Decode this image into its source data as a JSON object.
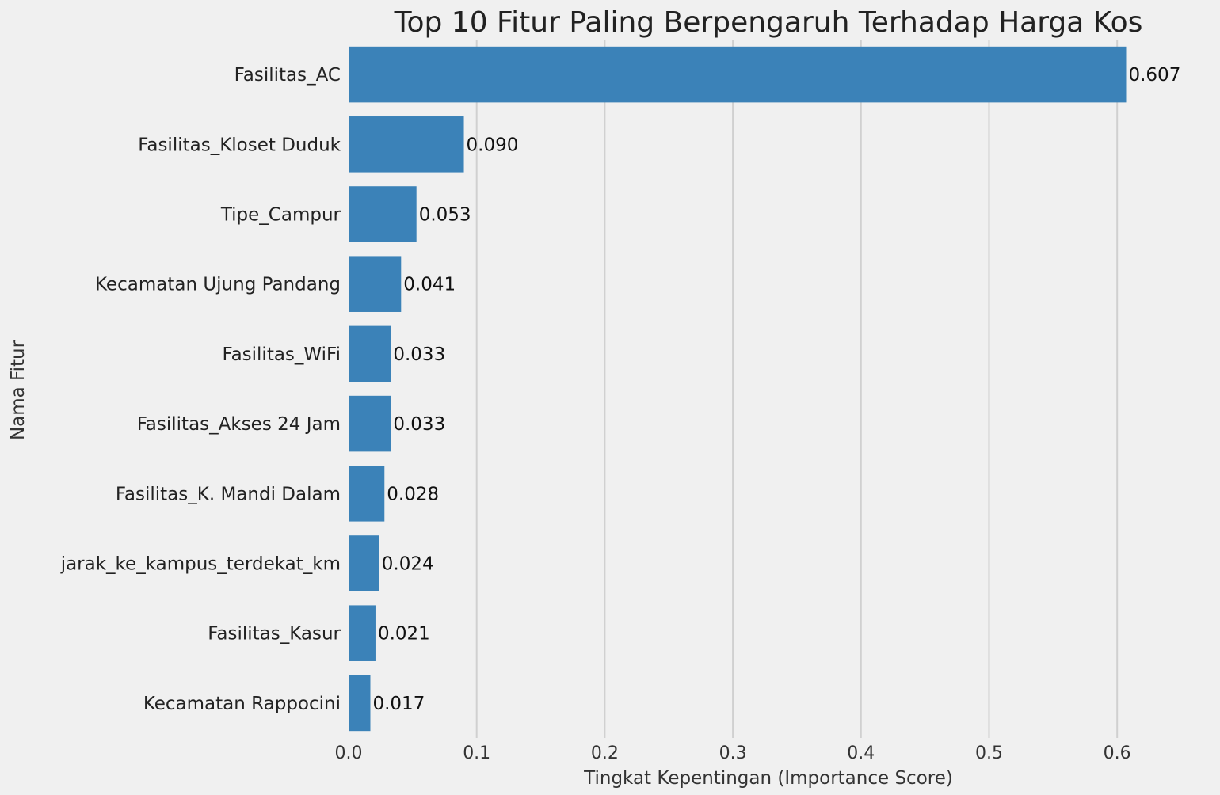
{
  "chart_data": {
    "type": "bar",
    "orientation": "horizontal",
    "title": "Top 10 Fitur Paling Berpengaruh Terhadap Harga Kos",
    "xlabel": "Tingkat Kepentingan (Importance Score)",
    "ylabel": "Nama Fitur",
    "categories": [
      "Fasilitas_AC",
      "Fasilitas_Kloset Duduk",
      "Tipe_Campur",
      "Kecamatan Ujung Pandang",
      "Fasilitas_WiFi",
      "Fasilitas_Akses 24 Jam",
      "Fasilitas_K. Mandi Dalam",
      "jarak_ke_kampus_terdekat_km",
      "Fasilitas_Kasur",
      "Kecamatan Rappocini"
    ],
    "values": [
      0.607,
      0.09,
      0.053,
      0.041,
      0.033,
      0.033,
      0.028,
      0.024,
      0.021,
      0.017
    ],
    "value_labels": [
      "0.607",
      "0.090",
      "0.053",
      "0.041",
      "0.033",
      "0.033",
      "0.028",
      "0.024",
      "0.021",
      "0.017"
    ],
    "xticks": [
      "0.0",
      "0.1",
      "0.2",
      "0.3",
      "0.4",
      "0.5",
      "0.6"
    ],
    "xlim": [
      0,
      0.637
    ],
    "grid": "vertical",
    "bar_color": "#3b82b8",
    "background_color": "#f0f0f0",
    "grid_color": "#d0d0d0"
  }
}
